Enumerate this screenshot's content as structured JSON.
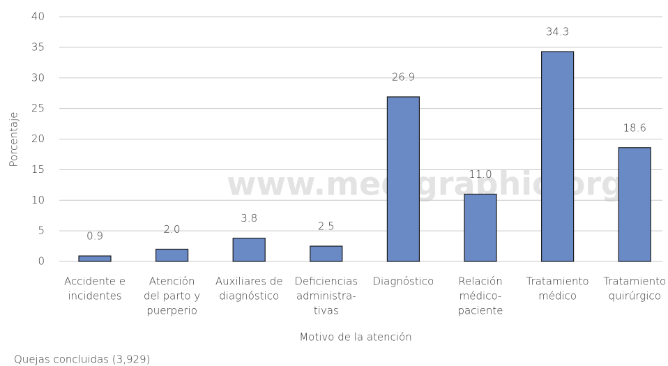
{
  "chart_data": {
    "type": "bar",
    "y_label": "Porcentaje",
    "x_label": "Motivo de la atención",
    "footnote": "Quejas concluidas (3,929)",
    "watermark": "www.medigraphic.org",
    "categories": [
      [
        "Accidente e",
        "incidentes"
      ],
      [
        "Atención",
        "del parto y",
        "puerperio"
      ],
      [
        "Auxiliares de",
        "diagnóstico"
      ],
      [
        "Deficiencias",
        "administra-",
        "tivas"
      ],
      [
        "Diagnóstico"
      ],
      [
        "Relación",
        "médico-",
        "paciente"
      ],
      [
        "Tratamiento",
        "médico"
      ],
      [
        "Tratamiento",
        "quirúrgico"
      ]
    ],
    "values": [
      0.9,
      2.0,
      3.8,
      2.5,
      26.9,
      11.0,
      34.3,
      18.6
    ],
    "value_labels": [
      "0.9",
      "2.0",
      "3.8",
      "2.5",
      "26.9",
      "11.0",
      "34.3",
      "18.6"
    ],
    "color": "#6a8ac6",
    "ylim": [
      0,
      40
    ],
    "yticks": [
      0,
      5,
      10,
      15,
      20,
      25,
      30,
      35,
      40
    ],
    "grid": true
  }
}
